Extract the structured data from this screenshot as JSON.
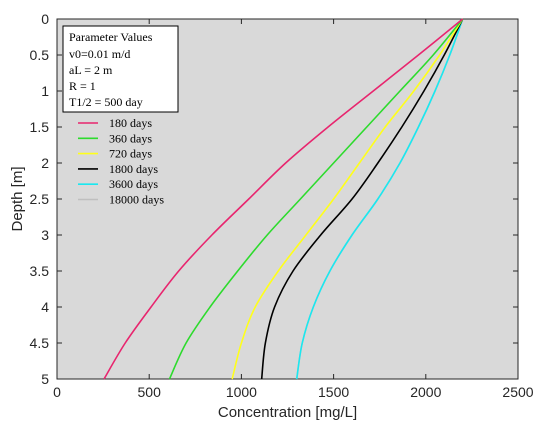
{
  "chart_data": {
    "type": "line",
    "title": "",
    "xlabel": "Concentration [mg/L]",
    "ylabel": "Depth [m]",
    "xlim": [
      0,
      2500
    ],
    "ylim": [
      0,
      5
    ],
    "y_reversed": true,
    "x_ticks": [
      0,
      500,
      1000,
      1500,
      2000,
      2500
    ],
    "y_ticks": [
      0,
      0.5,
      1,
      1.5,
      2,
      2.5,
      3,
      3.5,
      4,
      4.5,
      5
    ],
    "grid": false,
    "plot_background": "#d9d9d9",
    "legend_location": "top-left",
    "parameter_box": {
      "title": "Parameter Values",
      "lines": [
        "v0=0.01 m/d",
        "aL = 2 m",
        "R = 1",
        "T1/2 = 500 day"
      ]
    },
    "series": [
      {
        "name": "180 days",
        "color": "#e8256e",
        "points": [
          [
            2200,
            0
          ],
          [
            1960,
            0.5
          ],
          [
            1715,
            1
          ],
          [
            1470,
            1.5
          ],
          [
            1240,
            2
          ],
          [
            1040,
            2.5
          ],
          [
            840,
            3
          ],
          [
            660,
            3.5
          ],
          [
            510,
            4
          ],
          [
            370,
            4.5
          ],
          [
            255,
            5
          ]
        ]
      },
      {
        "name": "360 days",
        "color": "#2ddb2d",
        "points": [
          [
            2200,
            0
          ],
          [
            2040,
            0.5
          ],
          [
            1860,
            1
          ],
          [
            1680,
            1.5
          ],
          [
            1500,
            2
          ],
          [
            1320,
            2.5
          ],
          [
            1140,
            3
          ],
          [
            980,
            3.5
          ],
          [
            830,
            4
          ],
          [
            700,
            4.5
          ],
          [
            610,
            5
          ]
        ]
      },
      {
        "name": "720 days",
        "color": "#ffff1a",
        "points": [
          [
            2200,
            0
          ],
          [
            2075,
            0.5
          ],
          [
            1935,
            1
          ],
          [
            1780,
            1.5
          ],
          [
            1640,
            2
          ],
          [
            1500,
            2.5
          ],
          [
            1350,
            3
          ],
          [
            1200,
            3.5
          ],
          [
            1075,
            4
          ],
          [
            1000,
            4.5
          ],
          [
            950,
            5
          ]
        ]
      },
      {
        "name": "1800 days",
        "color": "#000000",
        "points": [
          [
            2200,
            0
          ],
          [
            2100,
            0.5
          ],
          [
            1990,
            1
          ],
          [
            1870,
            1.5
          ],
          [
            1740,
            2
          ],
          [
            1600,
            2.5
          ],
          [
            1430,
            3
          ],
          [
            1280,
            3.5
          ],
          [
            1180,
            4
          ],
          [
            1130,
            4.5
          ],
          [
            1110,
            5
          ]
        ]
      },
      {
        "name": "3600 days",
        "color": "#1ae8f0",
        "points": [
          [
            2200,
            0
          ],
          [
            2130,
            0.5
          ],
          [
            2050,
            1
          ],
          [
            1960,
            1.5
          ],
          [
            1860,
            2
          ],
          [
            1740,
            2.5
          ],
          [
            1600,
            3
          ],
          [
            1480,
            3.5
          ],
          [
            1390,
            4
          ],
          [
            1330,
            4.5
          ],
          [
            1300,
            5
          ]
        ]
      },
      {
        "name": "18000 days",
        "color": "#bfbfbf",
        "points": [
          [
            2200,
            0
          ],
          [
            2130,
            0.5
          ],
          [
            2050,
            1
          ],
          [
            1960,
            1.5
          ],
          [
            1860,
            2
          ],
          [
            1740,
            2.5
          ],
          [
            1600,
            3
          ],
          [
            1480,
            3.5
          ],
          [
            1390,
            4
          ],
          [
            1330,
            4.5
          ],
          [
            1300,
            5
          ]
        ]
      }
    ]
  }
}
